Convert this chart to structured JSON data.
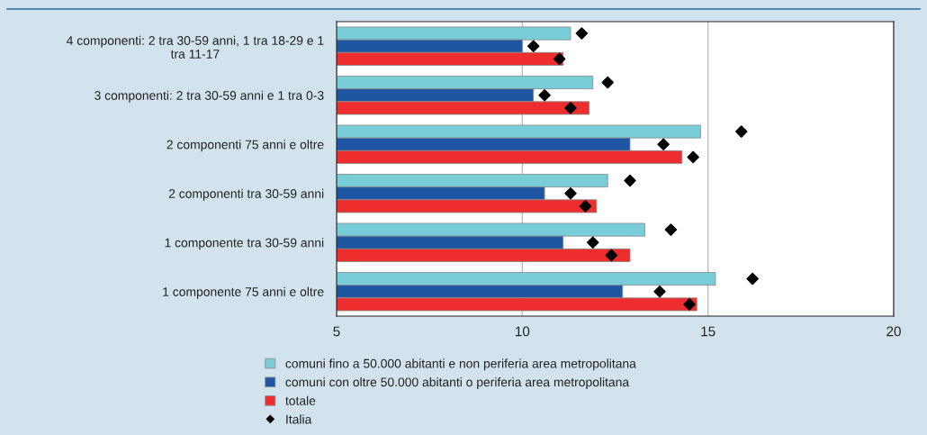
{
  "chart_data": {
    "type": "bar",
    "orientation": "horizontal",
    "categories": [
      "4 componenti: 2 tra 30-59 anni, 1 tra 18-29 e 1\ntra 11-17",
      "3 componenti: 2 tra 30-59 anni e 1 tra 0-3",
      "2 componenti 75 anni e oltre",
      "2 componenti tra 30-59 anni",
      "1 componente tra 30-59 anni",
      "1 componente 75 anni e oltre"
    ],
    "series": [
      {
        "name": "comuni fino a 50.000 abitanti e non periferia area metropolitana",
        "color": "#79cdd9",
        "values": [
          11.3,
          11.9,
          14.8,
          12.3,
          13.3,
          15.2
        ]
      },
      {
        "name": "comuni con oltre 50.000 abitanti o periferia area metropolitana",
        "color": "#1e56a3",
        "values": [
          10.0,
          10.3,
          12.9,
          10.6,
          11.1,
          12.7
        ]
      },
      {
        "name": "totale",
        "color": "#ee2d2e",
        "values": [
          11.1,
          11.8,
          14.3,
          12.0,
          12.9,
          14.7
        ]
      },
      {
        "name": "Italia",
        "type": "scatter",
        "color": "#000000",
        "marker": "diamond",
        "values": [
          11.6,
          12.3,
          15.9,
          12.9,
          14.0,
          16.2
        ]
      },
      {
        "type": "scatter",
        "color": "#000000",
        "marker": "diamond",
        "values": [
          10.3,
          10.6,
          13.8,
          11.3,
          11.9,
          13.7
        ]
      },
      {
        "type": "scatter",
        "color": "#000000",
        "marker": "diamond",
        "values": [
          11.0,
          11.3,
          14.6,
          11.7,
          12.4,
          14.5
        ]
      }
    ],
    "xlim": [
      5,
      20
    ],
    "xticks": [
      5,
      10,
      15,
      20
    ],
    "grid": "x",
    "legend": "bottom"
  }
}
